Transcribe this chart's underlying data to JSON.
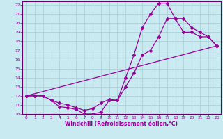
{
  "xlabel": "Windchill (Refroidissement éolien,°C)",
  "bg_color": "#c8eaf0",
  "grid_color": "#b0d0d8",
  "line_color": "#990099",
  "spine_color": "#660066",
  "xlim": [
    -0.5,
    23.5
  ],
  "ylim": [
    10,
    22.4
  ],
  "xticks": [
    0,
    1,
    2,
    3,
    4,
    5,
    6,
    7,
    8,
    9,
    10,
    11,
    12,
    13,
    14,
    15,
    16,
    17,
    18,
    19,
    20,
    21,
    22,
    23
  ],
  "yticks": [
    10,
    11,
    12,
    13,
    14,
    15,
    16,
    17,
    18,
    19,
    20,
    21,
    22
  ],
  "curve1_x": [
    0,
    1,
    2,
    3,
    4,
    5,
    6,
    7,
    8,
    9,
    10,
    11,
    12,
    13,
    14,
    15,
    16,
    17,
    18,
    19,
    20,
    21,
    22,
    23
  ],
  "curve1_y": [
    12,
    12,
    12,
    11.5,
    10.8,
    10.7,
    10.5,
    10.0,
    10.0,
    10.2,
    11.5,
    11.5,
    14.0,
    16.5,
    19.5,
    21.0,
    22.2,
    22.2,
    20.5,
    19.0,
    19.0,
    18.5,
    18.5,
    17.5
  ],
  "curve2_x": [
    0,
    1,
    2,
    3,
    4,
    5,
    6,
    7,
    8,
    9,
    10,
    11,
    12,
    13,
    14,
    15,
    16,
    17,
    18,
    19,
    20,
    21,
    22,
    23
  ],
  "curve2_y": [
    12,
    12,
    12,
    11.5,
    11.2,
    11.0,
    10.7,
    10.4,
    10.6,
    11.2,
    11.6,
    11.5,
    13.0,
    14.5,
    16.5,
    17.0,
    18.5,
    20.5,
    20.5,
    20.5,
    19.5,
    19.0,
    18.5,
    17.5
  ],
  "curve3_x": [
    0,
    23
  ],
  "curve3_y": [
    12,
    17.5
  ]
}
